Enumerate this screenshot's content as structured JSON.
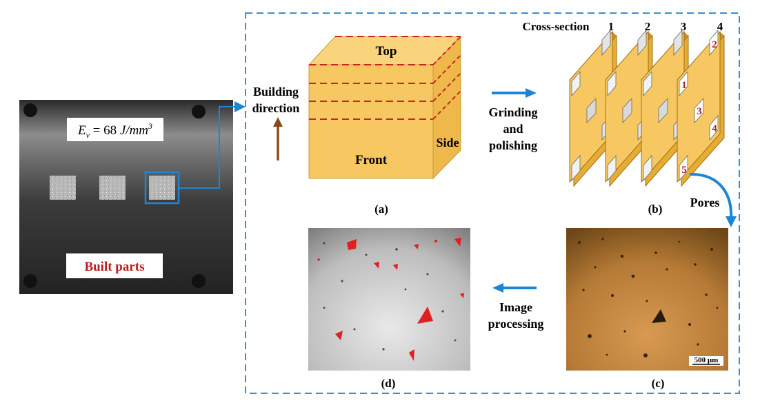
{
  "photo": {
    "energy_label": "E",
    "energy_sub": "v",
    "energy_value": " = 68 ",
    "energy_unit": "J/mm",
    "energy_exp": "3",
    "built_parts_label": "Built parts"
  },
  "panel_a": {
    "building_direction_line1": "Building",
    "building_direction_line2": "direction",
    "top_label": "Top",
    "front_label": "Front",
    "side_label": "Side",
    "caption": "(a)"
  },
  "process": {
    "grinding_line1": "Grinding",
    "grinding_line2": "and",
    "grinding_line3": "polishing",
    "image_line1": "Image",
    "image_line2": "processing",
    "pores_label": "Pores"
  },
  "panel_b": {
    "cross_section_label": "Cross-section",
    "section_numbers": [
      "1",
      "2",
      "3",
      "4"
    ],
    "position_numbers": [
      "1",
      "2",
      "3",
      "4",
      "5"
    ],
    "caption": "(b)"
  },
  "panel_c": {
    "scale_bar_label": "500 μm",
    "caption": "(c)"
  },
  "panel_d": {
    "caption": "(d)"
  },
  "colors": {
    "frame": "#3a8fd0",
    "arrow_blue": "#1c86d4",
    "arrow_brown": "#8b4a1a",
    "layer_red": "#cc2222",
    "block_front": "#f7c862",
    "block_top": "#f9d47c",
    "block_side": "#eeb84a",
    "label_red": "#b81c1c"
  }
}
